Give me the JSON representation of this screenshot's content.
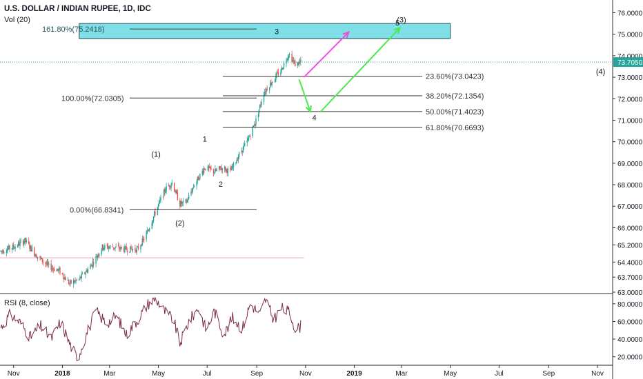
{
  "header": {
    "title": "U.S. DOLLAR / INDIAN RUPEE, 1D, IDC",
    "volume_label": "Vol (20)"
  },
  "rsi": {
    "label": "RSI (8, close)",
    "ticks": [
      "80.0000",
      "60.0000",
      "40.0000",
      "20.0000"
    ],
    "tick_values": [
      80,
      60,
      40,
      20
    ],
    "ylim": [
      12,
      90
    ]
  },
  "price_axis": {
    "ticks": [
      "76.0000",
      "75.0000",
      "74.0000",
      "73.0000",
      "72.0000",
      "71.0000",
      "70.0000",
      "69.0000",
      "68.0000",
      "67.0000",
      "66.0000",
      "65.2000",
      "64.4000",
      "63.7000",
      "63.0000"
    ],
    "tick_values": [
      76,
      75,
      74,
      73,
      72,
      71,
      70,
      69,
      68,
      67,
      66,
      65.2,
      64.4,
      63.7,
      63
    ],
    "current_price": "73.7050",
    "current_value": 73.705,
    "current_color": "#26a69a"
  },
  "time_axis": {
    "labels": [
      "Nov",
      "2018",
      "Mar",
      "May",
      "Jul",
      "Sep",
      "Nov",
      "2019",
      "Mar",
      "May",
      "Jul",
      "Sep",
      "Nov"
    ],
    "bold": [
      false,
      true,
      false,
      false,
      false,
      false,
      false,
      true,
      false,
      false,
      false,
      false,
      false
    ]
  },
  "fib_levels": [
    {
      "label": "161.80%(75.2418)",
      "value": 75.2418
    },
    {
      "label": "100.00%(72.0305)",
      "value": 72.0305
    },
    {
      "label": "0.00%(66.8341)",
      "value": 66.8341
    },
    {
      "label": "23.60%(73.0423)",
      "value": 73.0423
    },
    {
      "label": "38.20%(72.1354)",
      "value": 72.1354
    },
    {
      "label": "50.00%(71.4023)",
      "value": 71.4023
    },
    {
      "label": "61.80%(70.6693)",
      "value": 70.6693
    }
  ],
  "wave_labels": [
    {
      "text": "(1)",
      "date": "2018-04-28",
      "price": 69.3
    },
    {
      "text": "(2)",
      "date": "2018-05-28",
      "price": 66.1
    },
    {
      "text": "1",
      "date": "2018-06-28",
      "price": 70.0
    },
    {
      "text": "2",
      "date": "2018-07-18",
      "price": 67.9
    },
    {
      "text": "3",
      "date": "2018-09-26",
      "price": 75.0
    },
    {
      "text": "4",
      "date": "2018-11-12",
      "price": 71.0
    },
    {
      "text": "5",
      "date": "2019-02-24",
      "price": 75.4
    },
    {
      "text": "(3)",
      "date": "2019-03-01",
      "price": 75.55
    },
    {
      "text": "(4)",
      "date": "2019-11-05",
      "price": 73.15
    }
  ],
  "chart_data": {
    "type": "candlestick",
    "title": "U.S. DOLLAR / INDIAN RUPEE, 1D, IDC",
    "x_range": [
      "2017-10-15",
      "2019-11-20"
    ],
    "ylim": [
      63.0,
      76.4
    ],
    "up_color": "#26a69a",
    "down_color": "#ef5350",
    "price_path": [
      [
        "2017-10-15",
        64.9
      ],
      [
        "2017-11-01",
        65.1
      ],
      [
        "2017-11-15",
        65.4
      ],
      [
        "2017-11-30",
        64.7
      ],
      [
        "2017-12-15",
        64.2
      ],
      [
        "2017-12-28",
        64.0
      ],
      [
        "2018-01-10",
        63.4
      ],
      [
        "2018-01-22",
        63.6
      ],
      [
        "2018-02-05",
        64.2
      ],
      [
        "2018-02-20",
        65.1
      ],
      [
        "2018-03-05",
        65.1
      ],
      [
        "2018-03-20",
        65.0
      ],
      [
        "2018-04-05",
        65.0
      ],
      [
        "2018-04-15",
        65.6
      ],
      [
        "2018-04-28",
        66.8
      ],
      [
        "2018-05-10",
        67.8
      ],
      [
        "2018-05-18",
        68.1
      ],
      [
        "2018-05-28",
        67.1
      ],
      [
        "2018-06-05",
        67.2
      ],
      [
        "2018-06-15",
        68.0
      ],
      [
        "2018-06-28",
        68.8
      ],
      [
        "2018-07-10",
        68.6
      ],
      [
        "2018-07-20",
        68.8
      ],
      [
        "2018-07-30",
        68.6
      ],
      [
        "2018-08-10",
        69.4
      ],
      [
        "2018-08-20",
        70.0
      ],
      [
        "2018-08-31",
        71.0
      ],
      [
        "2018-09-10",
        72.3
      ],
      [
        "2018-09-20",
        72.8
      ],
      [
        "2018-10-01",
        73.3
      ],
      [
        "2018-10-11",
        74.1
      ],
      [
        "2018-10-19",
        73.6
      ],
      [
        "2018-10-26",
        73.7
      ]
    ],
    "annotations": {
      "target_zone": {
        "from": "2018-01-22",
        "to": "2019-05-01",
        "low": 74.8,
        "high": 75.5,
        "fill": "#7fdfe6",
        "stroke": "#1a4a55"
      },
      "reference_line": {
        "from": "2017-10-15",
        "to": "2018-10-30",
        "value": 64.6,
        "color": "#f0a8b8"
      },
      "arrows": [
        {
          "from": [
            "2018-10-30",
            73.0
          ],
          "to": [
            "2018-12-25",
            75.1
          ],
          "color": "#f04de0"
        },
        {
          "from": [
            "2018-10-24",
            72.9
          ],
          "to": [
            "2018-11-07",
            71.4
          ],
          "color": "#4de84d"
        },
        {
          "from": [
            "2018-11-20",
            71.4
          ],
          "to": [
            "2019-02-27",
            75.3
          ],
          "color": "#4de84d"
        }
      ]
    }
  },
  "rsi_data": {
    "type": "line",
    "name": "RSI (8, close)",
    "color": "#7b2a45",
    "path": [
      [
        "2017-10-15",
        52
      ],
      [
        "2017-10-28",
        68
      ],
      [
        "2017-11-10",
        58
      ],
      [
        "2017-11-22",
        42
      ],
      [
        "2017-12-05",
        55
      ],
      [
        "2017-12-18",
        40
      ],
      [
        "2017-12-30",
        60
      ],
      [
        "2018-01-10",
        35
      ],
      [
        "2018-01-20",
        18
      ],
      [
        "2018-02-01",
        48
      ],
      [
        "2018-02-12",
        72
      ],
      [
        "2018-02-25",
        58
      ],
      [
        "2018-03-10",
        66
      ],
      [
        "2018-03-22",
        45
      ],
      [
        "2018-04-05",
        62
      ],
      [
        "2018-04-18",
        80
      ],
      [
        "2018-04-28",
        86
      ],
      [
        "2018-05-08",
        72
      ],
      [
        "2018-05-20",
        62
      ],
      [
        "2018-05-28",
        35
      ],
      [
        "2018-06-08",
        60
      ],
      [
        "2018-06-20",
        75
      ],
      [
        "2018-06-30",
        50
      ],
      [
        "2018-07-10",
        72
      ],
      [
        "2018-07-22",
        45
      ],
      [
        "2018-08-02",
        64
      ],
      [
        "2018-08-14",
        52
      ],
      [
        "2018-08-24",
        80
      ],
      [
        "2018-09-05",
        68
      ],
      [
        "2018-09-12",
        85
      ],
      [
        "2018-09-22",
        62
      ],
      [
        "2018-10-02",
        75
      ],
      [
        "2018-10-12",
        70
      ],
      [
        "2018-10-20",
        50
      ],
      [
        "2018-10-26",
        55
      ]
    ]
  }
}
